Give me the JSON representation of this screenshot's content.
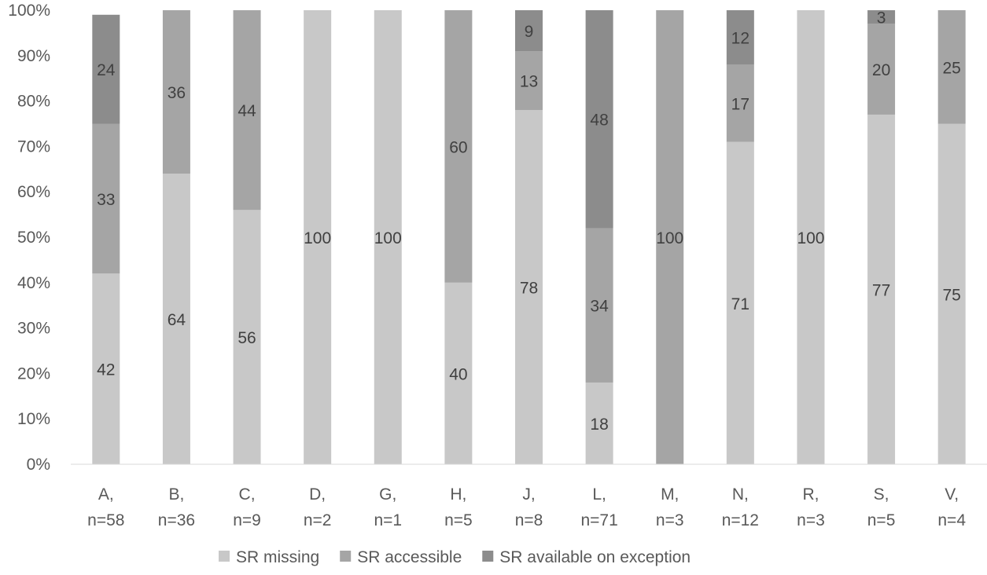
{
  "chart_data": {
    "type": "bar",
    "stacked": true,
    "percent_stacked": true,
    "title": "",
    "xlabel": "",
    "ylabel": "",
    "ylim": [
      0,
      100
    ],
    "yticks": [
      "0%",
      "10%",
      "20%",
      "30%",
      "40%",
      "50%",
      "60%",
      "70%",
      "80%",
      "90%",
      "100%"
    ],
    "categories": [
      [
        "A,",
        "n=58"
      ],
      [
        "B,",
        "n=36"
      ],
      [
        "C,",
        "n=9"
      ],
      [
        "D,",
        "n=2"
      ],
      [
        "G,",
        "n=1"
      ],
      [
        "H,",
        "n=5"
      ],
      [
        "J,",
        "n=8"
      ],
      [
        "L,",
        "n=71"
      ],
      [
        "M,",
        "n=3"
      ],
      [
        "N,",
        "n=12"
      ],
      [
        "R,",
        "n=3"
      ],
      [
        "S,",
        "n=5"
      ],
      [
        "V,",
        "n=4"
      ]
    ],
    "series": [
      {
        "name": "SR missing",
        "color": "#c8c8c8",
        "values": [
          42,
          64,
          56,
          100,
          100,
          40,
          78,
          18,
          0,
          71,
          100,
          77,
          75
        ]
      },
      {
        "name": "SR accessible",
        "color": "#a5a5a5",
        "values": [
          33,
          36,
          44,
          0,
          0,
          60,
          13,
          34,
          100,
          17,
          0,
          20,
          25
        ]
      },
      {
        "name": "SR available on exception",
        "color": "#8c8c8c",
        "values": [
          24,
          0,
          0,
          0,
          0,
          0,
          9,
          48,
          0,
          12,
          0,
          3,
          0
        ]
      }
    ],
    "grid": false,
    "legend_position": "bottom"
  }
}
